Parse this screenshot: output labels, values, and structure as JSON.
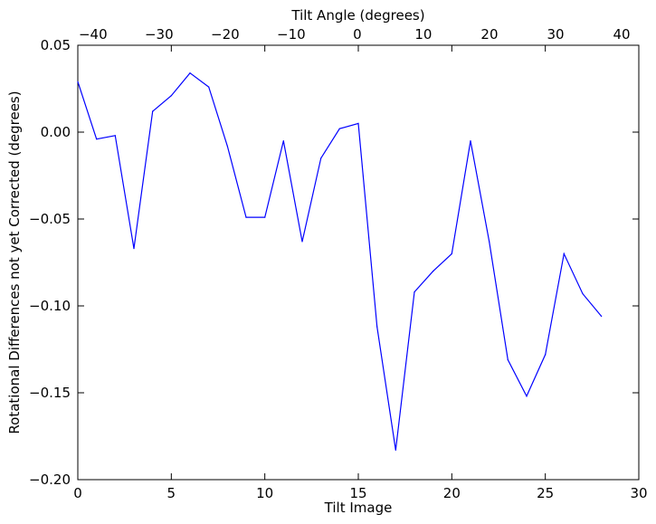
{
  "chart_data": {
    "type": "line",
    "title": "",
    "xlabel": "Tilt Image",
    "ylabel": "Rotational Differences not yet Corrected (degrees)",
    "top_xlabel": "Tilt Angle (degrees)",
    "xlim": [
      0,
      30
    ],
    "ylim": [
      -0.2,
      0.05
    ],
    "top_xlim": [
      -42.3,
      42.6
    ],
    "xticks": [
      0,
      5,
      10,
      15,
      20,
      25,
      30
    ],
    "xtick_labels": [
      "0",
      "5",
      "10",
      "15",
      "20",
      "25",
      "30"
    ],
    "yticks": [
      0.05,
      0.0,
      -0.05,
      -0.1,
      -0.15,
      -0.2
    ],
    "ytick_labels": [
      "0.05",
      "0.00",
      "−0.05",
      "−0.10",
      "−0.15",
      "−0.20"
    ],
    "top_xticks": [
      -40,
      -30,
      -20,
      -10,
      0,
      10,
      20,
      30,
      40
    ],
    "top_xtick_labels": [
      "−40",
      "−30",
      "−20",
      "−10",
      "0",
      "10",
      "20",
      "30",
      "40"
    ],
    "grid": false,
    "legend": "none",
    "series": [
      {
        "color": "#0000ff",
        "x": [
          0,
          1,
          2,
          3,
          4,
          5,
          6,
          7,
          8,
          9,
          10,
          11,
          12,
          13,
          14,
          15,
          16,
          17,
          18,
          19,
          20,
          21,
          22,
          23,
          24,
          25,
          26,
          27,
          28
        ],
        "y": [
          0.029,
          -0.004,
          -0.002,
          -0.067,
          0.012,
          0.021,
          0.034,
          0.026,
          -0.008,
          -0.049,
          -0.049,
          -0.005,
          -0.063,
          -0.015,
          0.002,
          0.005,
          -0.112,
          -0.183,
          -0.092,
          -0.08,
          -0.07,
          -0.005,
          -0.063,
          -0.131,
          -0.152,
          -0.128,
          -0.07,
          -0.093,
          -0.106
        ]
      }
    ]
  }
}
